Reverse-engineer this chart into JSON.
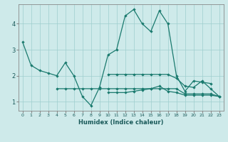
{
  "xlabel": "Humidex (Indice chaleur)",
  "xlim": [
    -0.5,
    23.5
  ],
  "ylim": [
    0.65,
    4.75
  ],
  "xticks": [
    0,
    1,
    2,
    3,
    4,
    5,
    6,
    7,
    8,
    9,
    10,
    11,
    12,
    13,
    14,
    15,
    16,
    17,
    18,
    19,
    20,
    21,
    22,
    23
  ],
  "yticks": [
    1,
    2,
    3,
    4
  ],
  "bg_color": "#ceeaea",
  "line_color": "#1a7a6e",
  "lines": [
    {
      "x": [
        0,
        1,
        2,
        3,
        4,
        5,
        6,
        7,
        8,
        9,
        10,
        11,
        12,
        13,
        14,
        15,
        16,
        17,
        18,
        19,
        20,
        21,
        22
      ],
      "y": [
        3.3,
        2.4,
        2.2,
        2.1,
        2.0,
        2.5,
        2.0,
        1.2,
        0.85,
        1.55,
        2.8,
        3.0,
        4.3,
        4.55,
        4.0,
        3.7,
        4.5,
        4.0,
        2.0,
        1.4,
        1.8,
        1.75,
        1.7
      ]
    },
    {
      "x": [
        4,
        5,
        6,
        7,
        8,
        9,
        10,
        11,
        12,
        13,
        14,
        15,
        16,
        17,
        18,
        19,
        20,
        21,
        22,
        23
      ],
      "y": [
        1.5,
        1.5,
        1.5,
        1.5,
        1.5,
        1.5,
        1.5,
        1.5,
        1.5,
        1.5,
        1.5,
        1.5,
        1.5,
        1.5,
        1.5,
        1.3,
        1.3,
        1.3,
        1.3,
        1.2
      ]
    },
    {
      "x": [
        10,
        11,
        12,
        13,
        14,
        15,
        16,
        17,
        18,
        19,
        20,
        21,
        22,
        23
      ],
      "y": [
        2.05,
        2.05,
        2.05,
        2.05,
        2.05,
        2.05,
        2.05,
        2.05,
        1.9,
        1.6,
        1.55,
        1.8,
        1.5,
        1.2
      ]
    },
    {
      "x": [
        10,
        11,
        12,
        13,
        14,
        15,
        16,
        17,
        18,
        19,
        20,
        21,
        22,
        23
      ],
      "y": [
        1.35,
        1.35,
        1.35,
        1.4,
        1.45,
        1.5,
        1.6,
        1.4,
        1.35,
        1.25,
        1.25,
        1.25,
        1.25,
        1.2
      ]
    }
  ]
}
